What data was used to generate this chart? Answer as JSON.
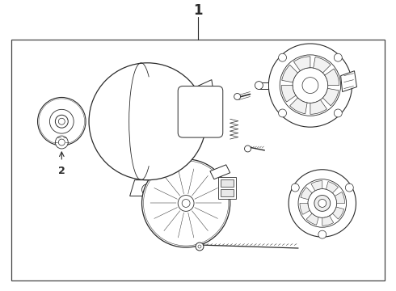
{
  "title": "1",
  "label_2": "2",
  "bg_color": "#ffffff",
  "line_color": "#2a2a2a",
  "fig_width": 4.9,
  "fig_height": 3.6,
  "dpi": 100
}
